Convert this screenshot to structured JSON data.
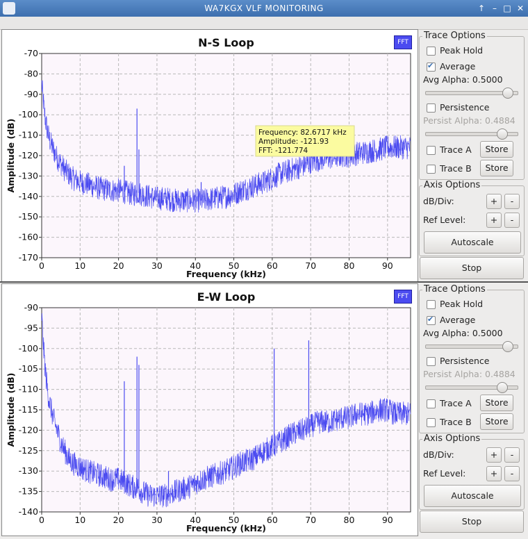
{
  "window": {
    "title": "WA7KGX  VLF MONITORING"
  },
  "panels": [
    {
      "plot": {
        "title": "N-S Loop",
        "fft_label": "FFT",
        "xlabel": "Frequency (kHz)",
        "ylabel": "Amplitude (dB)",
        "tooltip": {
          "frequency": "Frequency: 82.6717 kHz",
          "amplitude": "Amplitude: -121.93",
          "fft": "FFT: -121.774"
        }
      },
      "trace_options": {
        "title": "Trace Options",
        "peak_hold": "Peak Hold",
        "average": "Average",
        "avg_alpha": "Avg Alpha: 0.5000",
        "persistence": "Persistence",
        "persist_alpha": "Persist Alpha: 0.4884",
        "trace_a": "Trace A",
        "trace_b": "Trace B",
        "store": "Store"
      },
      "axis_options": {
        "title": "Axis Options",
        "db_div": "dB/Div:",
        "ref_level": "Ref Level:",
        "plus": "+",
        "minus": "-",
        "autoscale": "Autoscale"
      },
      "stop": "Stop"
    },
    {
      "plot": {
        "title": "E-W Loop",
        "fft_label": "FFT",
        "xlabel": "Frequency (kHz)",
        "ylabel": "Amplitude (dB)"
      },
      "trace_options": {
        "title": "Trace Options",
        "peak_hold": "Peak Hold",
        "average": "Average",
        "avg_alpha": "Avg Alpha: 0.5000",
        "persistence": "Persistence",
        "persist_alpha": "Persist Alpha: 0.4884",
        "trace_a": "Trace A",
        "trace_b": "Trace B",
        "store": "Store"
      },
      "axis_options": {
        "title": "Axis Options",
        "db_div": "dB/Div:",
        "ref_level": "Ref Level:",
        "plus": "+",
        "minus": "-",
        "autoscale": "Autoscale"
      },
      "stop": "Stop"
    }
  ],
  "controls_state": {
    "peak_hold": false,
    "average": true,
    "persistence": false,
    "trace_a": false,
    "trace_b": false,
    "avg_alpha": 0.5,
    "persist_alpha": 0.4884
  },
  "colors": {
    "trace": "#4b4bf0",
    "plot_bg": "#fcf6fc",
    "tooltip_bg": "#fbfba0"
  },
  "chart_data": [
    {
      "type": "line",
      "title": "N-S Loop",
      "xlabel": "Frequency (kHz)",
      "ylabel": "Amplitude (dB)",
      "xlim": [
        0,
        96
      ],
      "ylim": [
        -170,
        -70
      ],
      "xticks": [
        0,
        10,
        20,
        30,
        40,
        50,
        60,
        70,
        80,
        90
      ],
      "yticks": [
        -70,
        -80,
        -90,
        -100,
        -110,
        -120,
        -130,
        -140,
        -150,
        -160,
        -170
      ],
      "grid": true,
      "series": [
        {
          "x": [
            0,
            0.5,
            1,
            1.5,
            2,
            3,
            4,
            5,
            6,
            7,
            8,
            10,
            12,
            15,
            18,
            20,
            22,
            24,
            25,
            26,
            28,
            30,
            32,
            35,
            38,
            40,
            42,
            45,
            48,
            50,
            52,
            55,
            58,
            60,
            62,
            65,
            68,
            70,
            72,
            75,
            78,
            80,
            82,
            85,
            88,
            90,
            92,
            95
          ],
          "y": [
            -85,
            -95,
            -103,
            -108,
            -112,
            -117,
            -121,
            -124,
            -127,
            -129,
            -131,
            -133,
            -134,
            -136,
            -137,
            -137,
            -138,
            -139,
            -138,
            -139,
            -140,
            -141,
            -141,
            -142,
            -142,
            -142,
            -142,
            -141,
            -140,
            -139,
            -137,
            -135,
            -133,
            -131,
            -129,
            -127,
            -125,
            -123,
            -122,
            -121,
            -120,
            -120,
            -119,
            -118,
            -117,
            -116,
            -116,
            -116
          ]
        }
      ],
      "spikes": [
        {
          "x": 21.5,
          "y": -125
        },
        {
          "x": 24.8,
          "y": -97
        },
        {
          "x": 25.3,
          "y": -117
        },
        {
          "x": 41.5,
          "y": -133
        }
      ]
    },
    {
      "type": "line",
      "title": "E-W Loop",
      "xlabel": "Frequency (kHz)",
      "ylabel": "Amplitude (dB)",
      "xlim": [
        0,
        96
      ],
      "ylim": [
        -140,
        -90
      ],
      "xticks": [
        0,
        10,
        20,
        30,
        40,
        50,
        60,
        70,
        80,
        90
      ],
      "yticks": [
        -90,
        -95,
        -100,
        -105,
        -110,
        -115,
        -120,
        -125,
        -130,
        -135,
        -140
      ],
      "grid": true,
      "series": [
        {
          "x": [
            0,
            0.5,
            1,
            1.5,
            2,
            3,
            4,
            5,
            6,
            7,
            8,
            10,
            12,
            15,
            18,
            20,
            22,
            24,
            25,
            26,
            28,
            30,
            32,
            35,
            38,
            40,
            42,
            45,
            48,
            50,
            52,
            55,
            58,
            60,
            62,
            65,
            68,
            70,
            72,
            75,
            78,
            80,
            82,
            85,
            88,
            90,
            92,
            95
          ],
          "y": [
            -92,
            -100,
            -106,
            -110,
            -113,
            -117,
            -120,
            -123,
            -125,
            -127,
            -128,
            -129,
            -130,
            -131,
            -132,
            -132,
            -133,
            -134,
            -134,
            -135,
            -136,
            -136,
            -136,
            -135,
            -134,
            -133,
            -132,
            -131,
            -130,
            -129,
            -128,
            -127,
            -125,
            -124,
            -123,
            -121,
            -120,
            -119,
            -118,
            -118,
            -117,
            -117,
            -116,
            -116,
            -115,
            -115,
            -116,
            -116
          ]
        }
      ],
      "spikes": [
        {
          "x": 21.5,
          "y": -108
        },
        {
          "x": 24.8,
          "y": -102
        },
        {
          "x": 25.3,
          "y": -104
        },
        {
          "x": 60.5,
          "y": -100
        },
        {
          "x": 69.5,
          "y": -98
        },
        {
          "x": 33,
          "y": -130
        }
      ]
    }
  ]
}
